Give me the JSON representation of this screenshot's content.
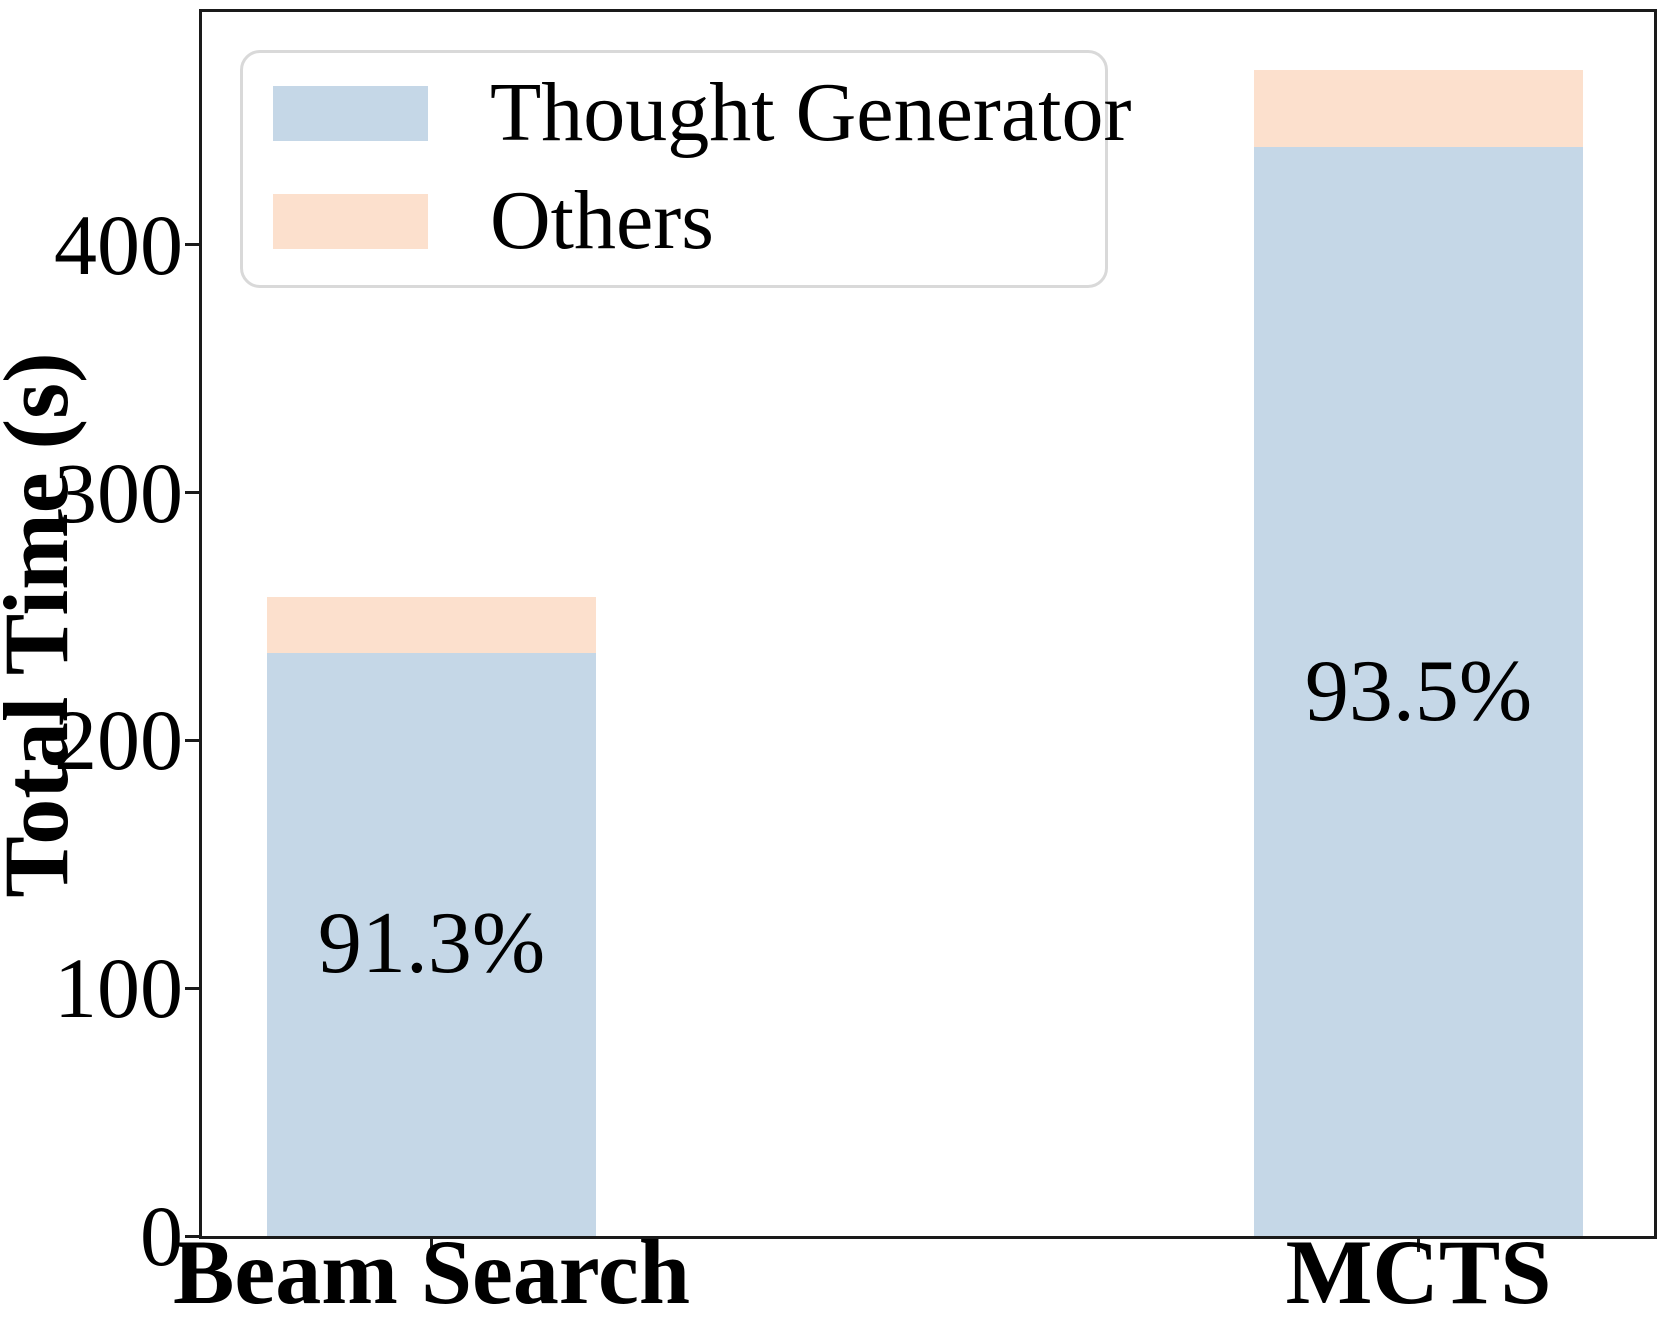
{
  "colors": {
    "thought_generator": "#c5d7e7",
    "others": "#fce0cd",
    "spine": "#1a1a1a",
    "legend_border": "#d9d9d9",
    "text": "#000000",
    "background": "#ffffff"
  },
  "chart_data": {
    "type": "bar",
    "stacked": true,
    "title": "",
    "xlabel": "",
    "ylabel": "Total Time (s)",
    "categories": [
      "Beam Search",
      "MCTS"
    ],
    "series": [
      {
        "name": "Thought Generator",
        "color": "#c5d7e7",
        "values": [
          235.5,
          439.5
        ]
      },
      {
        "name": "Others",
        "color": "#fce0cd",
        "values": [
          22.5,
          31.0
        ]
      }
    ],
    "totals": [
      258,
      470.5
    ],
    "bar_labels": [
      "91.3%",
      "93.5%"
    ],
    "ylim": [
      0,
      494
    ],
    "y_ticks": [
      {
        "label": "0",
        "value": 0
      },
      {
        "label": "100",
        "value": 100
      },
      {
        "label": "200",
        "value": 200
      },
      {
        "label": "300",
        "value": 300
      },
      {
        "label": "400",
        "value": 400
      }
    ],
    "grid": false,
    "legend_position": "upper-left"
  }
}
